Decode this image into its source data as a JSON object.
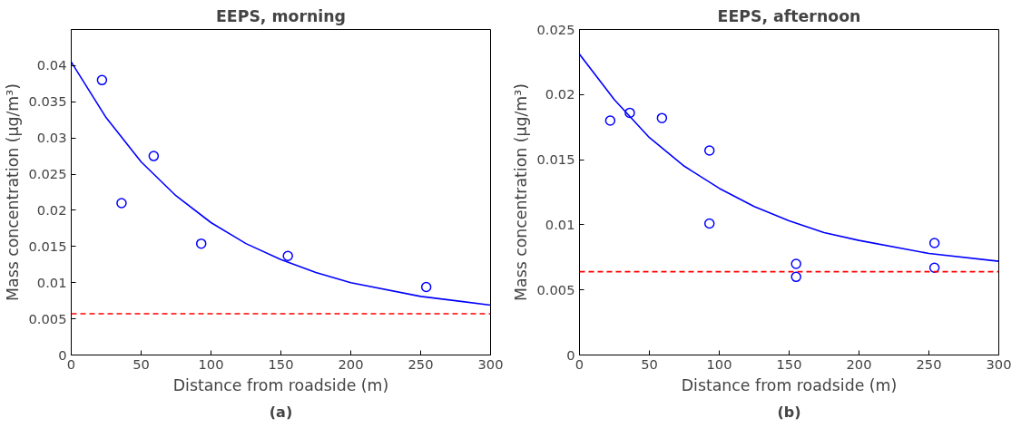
{
  "chart_data": [
    {
      "type": "scatter",
      "title": "EEPS, morning",
      "xlabel": "Distance from roadside (m)",
      "ylabel": "Mass concentration (µg/m³)",
      "annotations": [
        "(a)"
      ],
      "xlim": [
        0,
        300
      ],
      "xticks": [
        0,
        50,
        100,
        150,
        200,
        250,
        300
      ],
      "ylim": [
        0,
        0.045
      ],
      "yticks": [
        0,
        0.005,
        0.01,
        0.015,
        0.02,
        0.025,
        0.03,
        0.035,
        0.04
      ],
      "grid": false,
      "series": [
        {
          "marker": "circle",
          "color": "#0000ff",
          "x": [
            22,
            36,
            59,
            93,
            155,
            254
          ],
          "values": [
            0.038,
            0.021,
            0.0275,
            0.0154,
            0.0137,
            0.0094
          ]
        },
        {
          "type": "line",
          "marker": "none",
          "color": "#0000ff",
          "line_style": "solid",
          "x": [
            0,
            25,
            50,
            75,
            100,
            125,
            150,
            175,
            200,
            250,
            300
          ],
          "values": [
            0.0405,
            0.0328,
            0.0267,
            0.022,
            0.0183,
            0.0154,
            0.0132,
            0.0114,
            0.01,
            0.0081,
            0.0069
          ]
        }
      ],
      "ref_lines": [
        {
          "axis": "y",
          "value": 0.0057,
          "color": "#ff0000",
          "line_style": "dashed"
        }
      ]
    },
    {
      "type": "scatter",
      "title": "EEPS, afternoon",
      "xlabel": "Distance from roadside (m)",
      "ylabel": "Mass concentration (µg/m³)",
      "annotations": [
        "(b)"
      ],
      "xlim": [
        0,
        300
      ],
      "xticks": [
        0,
        50,
        100,
        150,
        200,
        250,
        300
      ],
      "ylim": [
        0,
        0.025
      ],
      "yticks": [
        0,
        0.005,
        0.01,
        0.015,
        0.02,
        0.025
      ],
      "grid": false,
      "series": [
        {
          "marker": "circle",
          "color": "#0000ff",
          "x": [
            22,
            36,
            59,
            93,
            93,
            155,
            155,
            254,
            254
          ],
          "values": [
            0.018,
            0.0186,
            0.0182,
            0.0157,
            0.0101,
            0.007,
            0.006,
            0.0086,
            0.0067
          ]
        },
        {
          "type": "line",
          "marker": "none",
          "color": "#0000ff",
          "line_style": "solid",
          "x": [
            0,
            25,
            50,
            75,
            100,
            125,
            150,
            175,
            200,
            250,
            300
          ],
          "values": [
            0.0231,
            0.0196,
            0.0167,
            0.0145,
            0.0128,
            0.0114,
            0.0103,
            0.0094,
            0.0088,
            0.0078,
            0.0072
          ]
        }
      ],
      "ref_lines": [
        {
          "axis": "y",
          "value": 0.0064,
          "color": "#ff0000",
          "line_style": "dashed"
        }
      ]
    }
  ]
}
